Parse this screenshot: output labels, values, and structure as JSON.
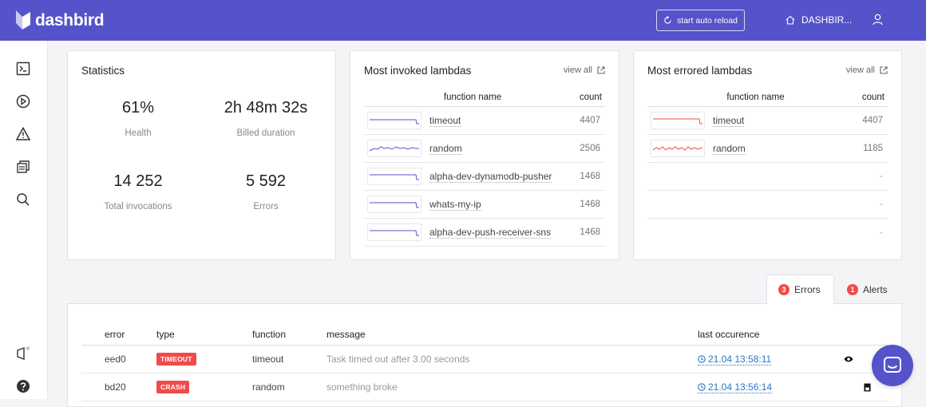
{
  "app": {
    "logo_text": "dashbird"
  },
  "header": {
    "reload_label": "start auto reload",
    "home_label": "DASHBIR..."
  },
  "sidebar": {
    "items": [
      {
        "icon": "terminal-icon"
      },
      {
        "icon": "play-circle-icon"
      },
      {
        "icon": "warning-icon"
      },
      {
        "icon": "stack-icon"
      },
      {
        "icon": "search-icon"
      },
      {
        "icon": "announcement-icon"
      },
      {
        "icon": "help-icon"
      }
    ]
  },
  "statistics": {
    "title": "Statistics",
    "health": {
      "value": "61%",
      "label": "Health"
    },
    "billed": {
      "value": "2h 48m 32s",
      "label": "Billed duration"
    },
    "invocations": {
      "value": "14 252",
      "label": "Total invocations"
    },
    "errors": {
      "value": "5 592",
      "label": "Errors"
    }
  },
  "invoked": {
    "title": "Most invoked lambdas",
    "view_all": "view all",
    "col_name": "function name",
    "col_count": "count",
    "rows": [
      {
        "name": "timeout",
        "count": "4407"
      },
      {
        "name": "random",
        "count": "2506"
      },
      {
        "name": "alpha-dev-dynamodb-pusher",
        "count": "1468"
      },
      {
        "name": "whats-my-ip",
        "count": "1468"
      },
      {
        "name": "alpha-dev-push-receiver-sns",
        "count": "1468"
      }
    ]
  },
  "errored": {
    "title": "Most errored lambdas",
    "view_all": "view all",
    "col_name": "function name",
    "col_count": "count",
    "rows": [
      {
        "name": "timeout",
        "count": "4407"
      },
      {
        "name": "random",
        "count": "1185"
      },
      {
        "name": "",
        "count": "-"
      },
      {
        "name": "",
        "count": "-"
      },
      {
        "name": "",
        "count": "-"
      }
    ]
  },
  "tabs": {
    "errors": {
      "label": "Errors",
      "count": "3"
    },
    "alerts": {
      "label": "Alerts",
      "count": "1"
    }
  },
  "errors_table": {
    "headers": {
      "error": "error",
      "type": "type",
      "function": "function",
      "message": "message",
      "last": "last occurence"
    },
    "rows": [
      {
        "error": "eed0",
        "type": "TIMEOUT",
        "function": "timeout",
        "message": "Task timed out after 3.00 seconds",
        "last": "21.04 13:58:11"
      },
      {
        "error": "bd20",
        "type": "CRASH",
        "function": "random",
        "message": "something broke",
        "last": "21.04 13:56:14"
      }
    ]
  },
  "colors": {
    "brand": "#5553c9",
    "error": "#f04a4a",
    "link": "#2a76c2"
  }
}
